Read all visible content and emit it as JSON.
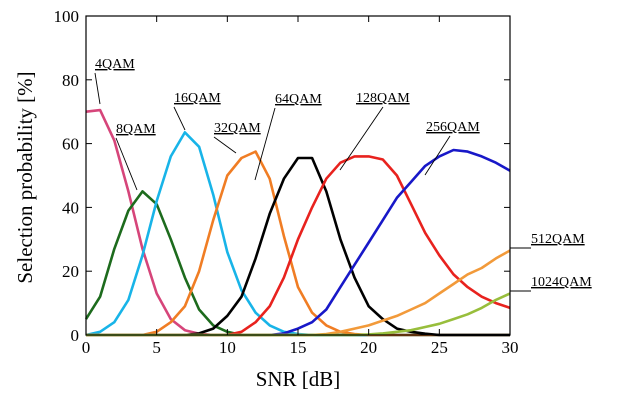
{
  "chart_data": {
    "type": "line",
    "xlabel": "SNR [dB]",
    "ylabel": "Selection probability [%]",
    "xlim": [
      0,
      30
    ],
    "ylim": [
      0,
      100
    ],
    "xticks": [
      0,
      5,
      10,
      15,
      20,
      25,
      30
    ],
    "yticks": [
      0,
      20,
      40,
      60,
      80,
      100
    ],
    "grid": false,
    "legend": "inline labels with leader lines",
    "x": [
      0,
      1,
      2,
      3,
      4,
      5,
      6,
      7,
      8,
      9,
      10,
      11,
      12,
      13,
      14,
      15,
      16,
      17,
      18,
      19,
      20,
      21,
      22,
      23,
      24,
      25,
      26,
      27,
      28,
      29,
      30
    ],
    "series": [
      {
        "name": "4QAM",
        "color": "#d6457a",
        "values": [
          70,
          70.5,
          61,
          45,
          27,
          13,
          5,
          1.5,
          0.4,
          0,
          0,
          0,
          0,
          0,
          0,
          0,
          0,
          0,
          0,
          0,
          0,
          0,
          0,
          0,
          0,
          0,
          0,
          0,
          0,
          0,
          0
        ]
      },
      {
        "name": "8QAM",
        "color": "#1d6b1d",
        "values": [
          5,
          12,
          27,
          39,
          45,
          41,
          30,
          18,
          8,
          3,
          1,
          0,
          0,
          0,
          0,
          0,
          0,
          0,
          0,
          0,
          0,
          0,
          0,
          0,
          0,
          0,
          0,
          0,
          0,
          0,
          0
        ]
      },
      {
        "name": "16QAM",
        "color": "#18b4e8",
        "values": [
          0,
          1,
          4,
          11,
          25,
          42,
          56,
          63.5,
          59,
          44,
          26,
          14,
          7,
          3,
          1,
          0.3,
          0,
          0,
          0,
          0,
          0,
          0,
          0,
          0,
          0,
          0,
          0,
          0,
          0,
          0,
          0
        ]
      },
      {
        "name": "32QAM",
        "color": "#f07d24",
        "values": [
          0,
          0,
          0,
          0,
          0,
          1,
          4,
          9,
          20,
          36,
          50,
          55.5,
          57.5,
          49,
          31,
          15,
          7,
          3,
          1,
          0.3,
          0,
          0,
          0,
          0,
          0,
          0,
          0,
          0,
          0,
          0,
          0
        ]
      },
      {
        "name": "64QAM",
        "color": "#000000",
        "values": [
          0,
          0,
          0,
          0,
          0,
          0,
          0,
          0,
          0.5,
          2,
          6,
          12,
          24,
          38,
          49,
          55.5,
          55.5,
          45,
          30,
          18,
          9,
          5,
          2,
          1,
          0.4,
          0,
          0,
          0,
          0,
          0,
          0
        ]
      },
      {
        "name": "128QAM",
        "color": "#e8221e",
        "values": [
          0,
          0,
          0,
          0,
          0,
          0,
          0,
          0,
          0,
          0,
          0,
          1,
          4,
          9,
          18,
          30,
          40,
          49,
          54,
          56,
          56,
          55,
          50,
          41,
          32,
          25,
          19,
          15,
          12,
          10,
          8.5
        ]
      },
      {
        "name": "256QAM",
        "color": "#1818c8",
        "values": [
          0,
          0,
          0,
          0,
          0,
          0,
          0,
          0,
          0,
          0,
          0,
          0,
          0,
          0,
          0.5,
          2,
          4,
          8,
          15,
          22,
          29,
          36,
          43,
          48,
          53,
          56,
          58,
          57.5,
          56,
          54,
          51.5
        ]
      },
      {
        "name": "512QAM",
        "color": "#f29a3a",
        "values": [
          0,
          0,
          0,
          0,
          0,
          0,
          0,
          0,
          0,
          0,
          0,
          0,
          0,
          0,
          0,
          0,
          0,
          0.3,
          1,
          2,
          3,
          4.5,
          6,
          8,
          10,
          13,
          16,
          19,
          21,
          24,
          26.5
        ]
      },
      {
        "name": "1024QAM",
        "color": "#98be3c",
        "values": [
          0,
          0,
          0,
          0,
          0,
          0,
          0,
          0,
          0,
          0,
          0,
          0,
          0,
          0,
          0,
          0,
          0,
          0,
          0,
          0,
          0.2,
          0.5,
          1,
          1.5,
          2.5,
          3.5,
          5,
          6.5,
          8.5,
          11,
          13
        ]
      }
    ]
  }
}
